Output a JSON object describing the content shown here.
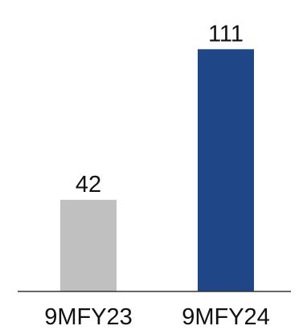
{
  "chart_data": {
    "type": "bar",
    "categories": [
      "9MFY23",
      "9MFY24"
    ],
    "series": [
      {
        "values": [
          42,
          111
        ]
      }
    ],
    "data_labels": [
      "42",
      "111"
    ],
    "bar_colors": [
      "#c0c0c0",
      "#1f4687"
    ],
    "ylim": [
      0,
      117
    ],
    "grid": false,
    "legend": "none",
    "title": "",
    "xlabel": "",
    "ylabel": ""
  }
}
